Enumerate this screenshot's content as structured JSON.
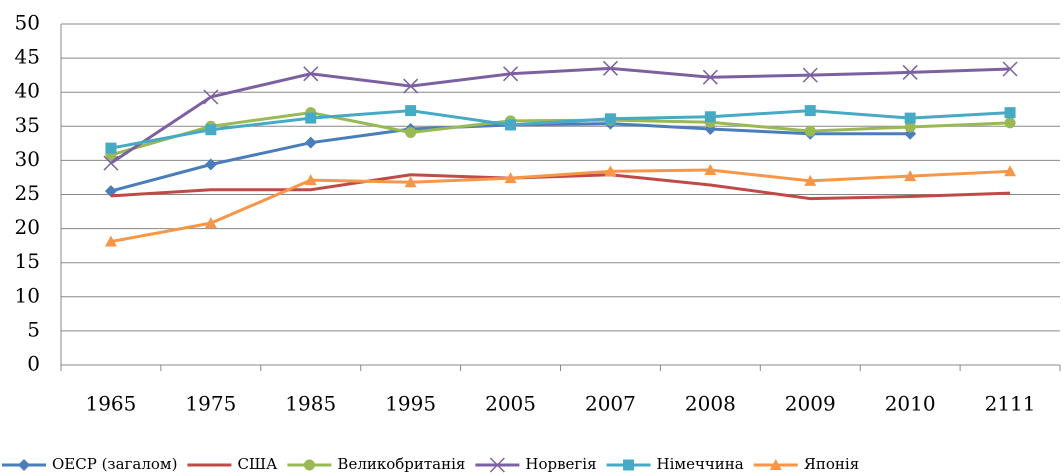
{
  "chart_data": {
    "type": "line",
    "categories": [
      "1965",
      "1975",
      "1985",
      "1995",
      "2005",
      "2007",
      "2008",
      "2009",
      "2010",
      "2111"
    ],
    "ylim": [
      0,
      50
    ],
    "yticks": [
      0,
      5,
      10,
      15,
      20,
      25,
      30,
      35,
      40,
      45,
      50
    ],
    "grid": true,
    "legend": "bottom",
    "series": [
      {
        "name": "ОЕСР (загалом)",
        "color": "#4a7ebb",
        "marker": "diamond",
        "values": [
          25.5,
          29.4,
          32.6,
          34.6,
          35.2,
          35.4,
          34.6,
          33.9,
          33.9,
          null
        ]
      },
      {
        "name": "США",
        "color": "#be4b48",
        "marker": "none",
        "values": [
          24.8,
          25.7,
          25.7,
          27.9,
          27.4,
          27.9,
          26.4,
          24.4,
          24.7,
          25.2
        ]
      },
      {
        "name": "Великобританія",
        "color": "#98b954",
        "marker": "circle",
        "values": [
          30.8,
          35.0,
          37.0,
          34.1,
          35.8,
          35.9,
          35.6,
          34.3,
          34.9,
          35.5
        ]
      },
      {
        "name": "Норвегія",
        "color": "#7d60a0",
        "marker": "x",
        "values": [
          29.6,
          39.3,
          42.7,
          40.9,
          42.7,
          43.5,
          42.2,
          42.5,
          42.9,
          43.4
        ]
      },
      {
        "name": "Німеччина",
        "color": "#46aac5",
        "marker": "square",
        "values": [
          31.8,
          34.5,
          36.2,
          37.3,
          35.2,
          36.1,
          36.4,
          37.3,
          36.2,
          37.0
        ]
      },
      {
        "name": "Японія",
        "color": "#f79646",
        "marker": "triangle",
        "values": [
          18.1,
          20.8,
          27.1,
          26.8,
          27.4,
          28.4,
          28.6,
          27.0,
          27.7,
          28.4
        ]
      }
    ]
  }
}
